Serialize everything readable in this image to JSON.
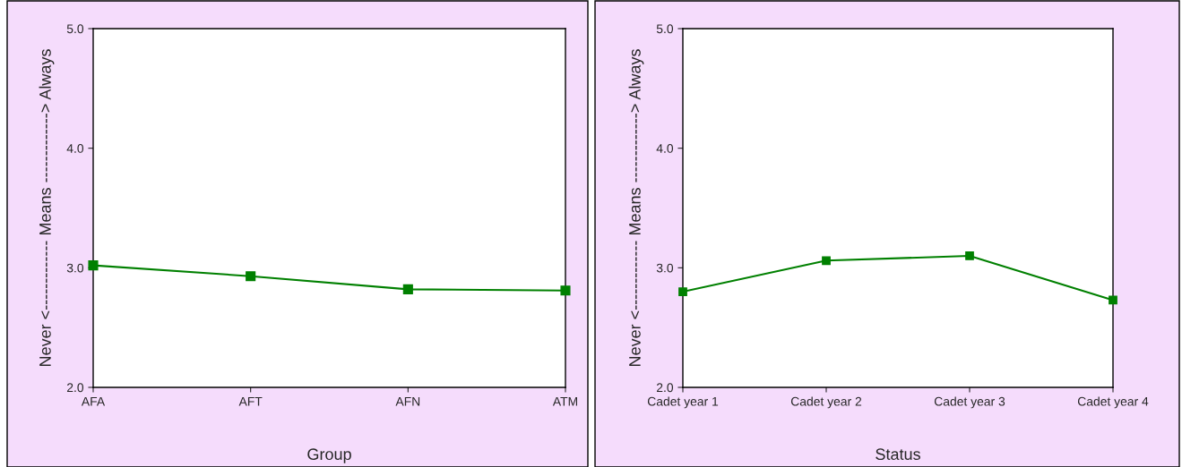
{
  "chart_data": [
    {
      "type": "line",
      "xlabel": "Group",
      "ylabel": "Never <------------- Means -------------> Always",
      "categories": [
        "AFA",
        "AFT",
        "AFN",
        "ATM"
      ],
      "series": [
        {
          "color": "#008000",
          "values": [
            3.02,
            2.93,
            2.82,
            2.81
          ]
        }
      ],
      "ylim": [
        2.0,
        5.0
      ],
      "yticks": [
        {
          "value": 2,
          "label": "2.0"
        },
        {
          "value": 3,
          "label": "3.0"
        },
        {
          "value": 4,
          "label": "4.0"
        },
        {
          "value": 5,
          "label": "5.0"
        }
      ],
      "marker": "square",
      "grid": false
    },
    {
      "type": "line",
      "xlabel": "Status",
      "ylabel": "Never <------------- Means -------------> Always",
      "categories": [
        "Cadet year 1",
        "Cadet year 2",
        "Cadet year 3",
        "Cadet year 4"
      ],
      "series": [
        {
          "color": "#008000",
          "values": [
            2.8,
            3.06,
            3.1,
            2.73
          ]
        }
      ],
      "ylim": [
        2.0,
        5.0
      ],
      "yticks": [
        {
          "value": 2,
          "label": "2.0"
        },
        {
          "value": 3,
          "label": "3.0"
        },
        {
          "value": 4,
          "label": "4.0"
        },
        {
          "value": 5,
          "label": "5.0"
        }
      ],
      "marker": "square",
      "grid": false
    }
  ]
}
